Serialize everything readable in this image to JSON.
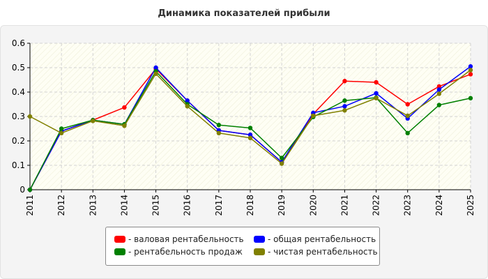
{
  "chart_data": {
    "type": "line",
    "title": "Динамика показателей прибыли",
    "xlabel": "",
    "ylabel": "",
    "ylim": [
      0,
      0.6
    ],
    "y_ticks": [
      "0",
      "0.1",
      "0.2",
      "0.3",
      "0.4",
      "0.5",
      "0.6"
    ],
    "grid": true,
    "legend_position": "bottom-center",
    "categories": [
      "2011",
      "2012",
      "2013",
      "2014",
      "2015",
      "2016",
      "2017",
      "2018",
      "2019",
      "2020",
      "2021",
      "2022",
      "2023",
      "2024",
      "2025"
    ],
    "series": [
      {
        "name": "- валовая рентабельность",
        "color": "#ff0000",
        "values": [
          0,
          0.24,
          0.285,
          0.337,
          0.495,
          0.365,
          0.243,
          0.225,
          0.113,
          0.31,
          0.445,
          0.44,
          0.35,
          0.423,
          0.473
        ]
      },
      {
        "name": "- общая рентабельность",
        "color": "#0000ff",
        "values": [
          0,
          0.24,
          0.285,
          0.268,
          0.5,
          0.365,
          0.243,
          0.225,
          0.113,
          0.315,
          0.342,
          0.395,
          0.292,
          0.41,
          0.505
        ]
      },
      {
        "name": "- рентабельность продаж",
        "color": "#008000",
        "values": [
          0,
          0.25,
          0.285,
          0.268,
          0.485,
          0.35,
          0.265,
          0.253,
          0.13,
          0.298,
          0.365,
          0.377,
          0.232,
          0.347,
          0.375
        ]
      },
      {
        "name": "- чистая рентабельность",
        "color": "#808000",
        "values": [
          0.3,
          0.232,
          0.282,
          0.262,
          0.475,
          0.342,
          0.232,
          0.212,
          0.107,
          0.303,
          0.325,
          0.375,
          0.303,
          0.393,
          0.49
        ]
      }
    ]
  }
}
